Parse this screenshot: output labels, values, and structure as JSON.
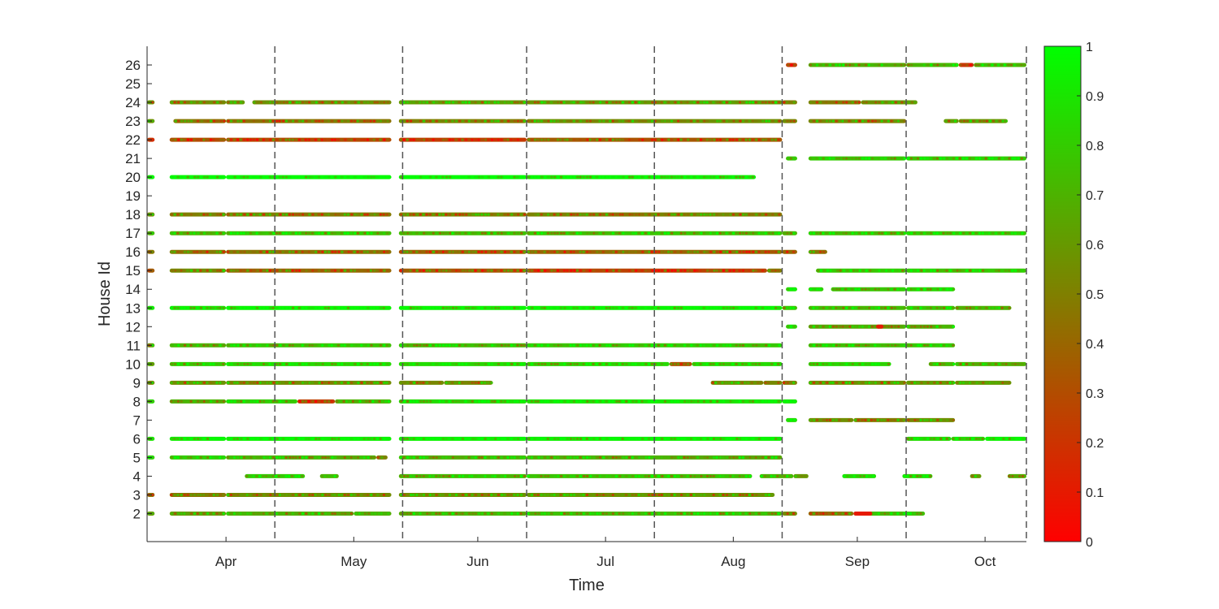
{
  "chart_data": {
    "type": "scatter",
    "title": "",
    "xlabel": "Time",
    "ylabel": "House Id",
    "x_unit": "day of year",
    "xlim": [
      60,
      294
    ],
    "ylim": [
      0.5,
      27
    ],
    "month_ticks": [
      {
        "label": "Apr",
        "day": 81
      },
      {
        "label": "May",
        "day": 115
      },
      {
        "label": "Jun",
        "day": 148
      },
      {
        "label": "Jul",
        "day": 182
      },
      {
        "label": "Aug",
        "day": 216
      },
      {
        "label": "Sep",
        "day": 249
      },
      {
        "label": "Oct",
        "day": 283
      }
    ],
    "boundary_days": [
      60,
      94,
      128,
      161,
      195,
      229,
      262,
      294
    ],
    "y_ticks": [
      "2",
      "3",
      "4",
      "5",
      "6",
      "7",
      "8",
      "9",
      "10",
      "11",
      "12",
      "13",
      "14",
      "15",
      "16",
      "17",
      "18",
      "19",
      "20",
      "21",
      "22",
      "23",
      "24",
      "25",
      "26"
    ],
    "colorbar": {
      "min": 0,
      "max": 1,
      "ticks": [
        "0",
        "0.1",
        "0.2",
        "0.3",
        "0.4",
        "0.5",
        "0.6",
        "0.7",
        "0.8",
        "0.9",
        "1"
      ],
      "color_low": "#ff0000",
      "color_high": "#00ff00"
    },
    "gridline_color": "#555555",
    "series": [
      {
        "house": 2,
        "segments": [
          [
            60,
            62,
            0.6
          ],
          [
            66,
            81,
            0.6
          ],
          [
            81,
            115,
            0.68
          ],
          [
            115,
            125,
            0.68
          ],
          [
            127,
            161,
            0.7
          ],
          [
            161,
            229,
            0.72
          ],
          [
            229,
            233,
            0.55
          ],
          [
            236,
            248,
            0.45
          ],
          [
            248,
            267,
            0.75
          ]
        ],
        "red_spots": [
          [
            248,
            253
          ]
        ]
      },
      {
        "house": 3,
        "segments": [
          [
            60,
            62,
            0.45
          ],
          [
            66,
            81,
            0.45
          ],
          [
            81,
            125,
            0.55
          ],
          [
            127,
            161,
            0.55
          ],
          [
            161,
            227,
            0.58
          ]
        ],
        "red_spots": []
      },
      {
        "house": 4,
        "segments": [
          [
            86,
            102,
            0.8
          ],
          [
            106,
            111,
            0.7
          ],
          [
            127,
            161,
            0.75
          ],
          [
            161,
            221,
            0.75
          ],
          [
            223,
            232,
            0.7
          ],
          [
            232,
            236,
            0.6
          ],
          [
            245,
            254,
            0.85
          ],
          [
            261,
            269,
            0.85
          ],
          [
            279,
            282,
            0.6
          ],
          [
            289,
            294,
            0.7
          ]
        ],
        "red_spots": []
      },
      {
        "house": 5,
        "segments": [
          [
            60,
            62,
            0.8
          ],
          [
            66,
            81,
            0.8
          ],
          [
            81,
            121,
            0.7
          ],
          [
            121,
            124,
            0.5
          ],
          [
            127,
            161,
            0.7
          ],
          [
            161,
            229,
            0.68
          ]
        ],
        "red_spots": []
      },
      {
        "house": 6,
        "segments": [
          [
            60,
            62,
            0.9
          ],
          [
            66,
            81,
            0.95
          ],
          [
            81,
            125,
            0.95
          ],
          [
            127,
            161,
            0.95
          ],
          [
            161,
            229,
            0.95
          ],
          [
            262,
            274,
            0.85
          ],
          [
            274,
            283,
            0.9
          ],
          [
            283,
            294,
            0.95
          ]
        ],
        "red_spots": []
      },
      {
        "house": 7,
        "segments": [
          [
            230,
            233,
            0.85
          ],
          [
            236,
            248,
            0.55
          ],
          [
            248,
            262,
            0.5
          ],
          [
            262,
            275,
            0.55
          ]
        ],
        "red_spots": []
      },
      {
        "house": 8,
        "segments": [
          [
            60,
            62,
            0.85
          ],
          [
            66,
            81,
            0.7
          ],
          [
            81,
            100,
            0.8
          ],
          [
            100,
            110,
            0.25
          ],
          [
            110,
            125,
            0.7
          ],
          [
            127,
            161,
            0.85
          ],
          [
            161,
            229,
            0.9
          ],
          [
            229,
            233,
            0.9
          ]
        ],
        "red_spots": []
      },
      {
        "house": 9,
        "segments": [
          [
            60,
            62,
            0.5
          ],
          [
            66,
            81,
            0.55
          ],
          [
            81,
            125,
            0.55
          ],
          [
            127,
            139,
            0.55
          ],
          [
            139,
            152,
            0.55
          ],
          [
            210,
            224,
            0.55
          ],
          [
            224,
            229,
            0.55
          ],
          [
            229,
            233,
            0.5
          ],
          [
            236,
            262,
            0.55
          ],
          [
            262,
            275,
            0.6
          ],
          [
            275,
            290,
            0.6
          ]
        ],
        "red_spots": []
      },
      {
        "house": 10,
        "segments": [
          [
            60,
            62,
            0.65
          ],
          [
            66,
            81,
            0.8
          ],
          [
            81,
            125,
            0.85
          ],
          [
            127,
            161,
            0.85
          ],
          [
            161,
            199,
            0.85
          ],
          [
            199,
            205,
            0.3
          ],
          [
            205,
            229,
            0.85
          ],
          [
            236,
            258,
            0.85
          ],
          [
            268,
            275,
            0.7
          ],
          [
            275,
            294,
            0.7
          ]
        ],
        "red_spots": []
      },
      {
        "house": 11,
        "segments": [
          [
            60,
            62,
            0.6
          ],
          [
            66,
            81,
            0.7
          ],
          [
            81,
            125,
            0.75
          ],
          [
            127,
            161,
            0.75
          ],
          [
            161,
            229,
            0.78
          ],
          [
            236,
            275,
            0.78
          ]
        ],
        "red_spots": []
      },
      {
        "house": 12,
        "segments": [
          [
            230,
            233,
            0.85
          ],
          [
            236,
            262,
            0.65
          ],
          [
            262,
            275,
            0.7
          ]
        ],
        "red_spots": [
          [
            254,
            256
          ]
        ]
      },
      {
        "house": 13,
        "segments": [
          [
            60,
            62,
            0.9
          ],
          [
            66,
            81,
            0.92
          ],
          [
            81,
            125,
            0.95
          ],
          [
            127,
            161,
            0.95
          ],
          [
            161,
            229,
            0.95
          ],
          [
            229,
            233,
            0.75
          ],
          [
            236,
            262,
            0.75
          ],
          [
            262,
            275,
            0.78
          ],
          [
            275,
            290,
            0.7
          ]
        ],
        "red_spots": []
      },
      {
        "house": 14,
        "segments": [
          [
            230,
            233,
            0.9
          ],
          [
            236,
            240,
            0.8
          ],
          [
            242,
            262,
            0.8
          ],
          [
            262,
            275,
            0.85
          ]
        ],
        "red_spots": []
      },
      {
        "house": 15,
        "segments": [
          [
            60,
            62,
            0.35
          ],
          [
            66,
            81,
            0.55
          ],
          [
            81,
            125,
            0.4
          ],
          [
            127,
            161,
            0.35
          ],
          [
            161,
            225,
            0.28
          ],
          [
            225,
            229,
            0.5
          ],
          [
            238,
            262,
            0.78
          ],
          [
            262,
            294,
            0.78
          ]
        ],
        "red_spots": []
      },
      {
        "house": 16,
        "segments": [
          [
            60,
            62,
            0.45
          ],
          [
            66,
            81,
            0.45
          ],
          [
            81,
            125,
            0.45
          ],
          [
            127,
            161,
            0.4
          ],
          [
            161,
            229,
            0.4
          ],
          [
            229,
            233,
            0.4
          ],
          [
            236,
            241,
            0.45
          ]
        ],
        "red_spots": []
      },
      {
        "house": 17,
        "segments": [
          [
            60,
            62,
            0.7
          ],
          [
            66,
            81,
            0.7
          ],
          [
            81,
            125,
            0.75
          ],
          [
            127,
            161,
            0.75
          ],
          [
            161,
            229,
            0.75
          ],
          [
            229,
            233,
            0.7
          ],
          [
            236,
            262,
            0.75
          ],
          [
            262,
            294,
            0.78
          ]
        ],
        "red_spots": []
      },
      {
        "house": 18,
        "segments": [
          [
            60,
            62,
            0.5
          ],
          [
            66,
            81,
            0.5
          ],
          [
            81,
            125,
            0.48
          ],
          [
            127,
            161,
            0.5
          ],
          [
            161,
            229,
            0.5
          ]
        ],
        "red_spots": []
      },
      {
        "house": 20,
        "segments": [
          [
            60,
            62,
            0.95
          ],
          [
            66,
            81,
            0.98
          ],
          [
            81,
            125,
            0.98
          ],
          [
            127,
            161,
            0.98
          ],
          [
            161,
            222,
            0.95
          ]
        ],
        "red_spots": []
      },
      {
        "house": 21,
        "segments": [
          [
            230,
            233,
            0.8
          ],
          [
            236,
            262,
            0.8
          ],
          [
            262,
            294,
            0.8
          ]
        ],
        "red_spots": []
      },
      {
        "house": 22,
        "segments": [
          [
            60,
            62,
            0.2
          ],
          [
            66,
            81,
            0.3
          ],
          [
            81,
            125,
            0.3
          ],
          [
            127,
            161,
            0.25
          ],
          [
            161,
            229,
            0.35
          ]
        ],
        "red_spots": []
      },
      {
        "house": 23,
        "segments": [
          [
            60,
            62,
            0.55
          ],
          [
            67,
            81,
            0.45
          ],
          [
            81,
            125,
            0.45
          ],
          [
            127,
            161,
            0.5
          ],
          [
            161,
            229,
            0.55
          ],
          [
            229,
            233,
            0.55
          ],
          [
            236,
            262,
            0.5
          ],
          [
            272,
            276,
            0.6
          ],
          [
            276,
            289,
            0.6
          ]
        ],
        "red_spots": []
      },
      {
        "house": 24,
        "segments": [
          [
            60,
            62,
            0.6
          ],
          [
            66,
            81,
            0.55
          ],
          [
            81,
            86,
            0.6
          ],
          [
            88,
            125,
            0.55
          ],
          [
            127,
            161,
            0.6
          ],
          [
            161,
            229,
            0.6
          ],
          [
            229,
            233,
            0.5
          ],
          [
            236,
            250,
            0.5
          ],
          [
            250,
            265,
            0.6
          ]
        ],
        "red_spots": []
      },
      {
        "house": 26,
        "segments": [
          [
            230,
            233,
            0.2
          ],
          [
            236,
            262,
            0.68
          ],
          [
            262,
            276,
            0.72
          ],
          [
            276,
            280,
            0.2
          ],
          [
            280,
            294,
            0.72
          ]
        ],
        "red_spots": []
      }
    ]
  }
}
